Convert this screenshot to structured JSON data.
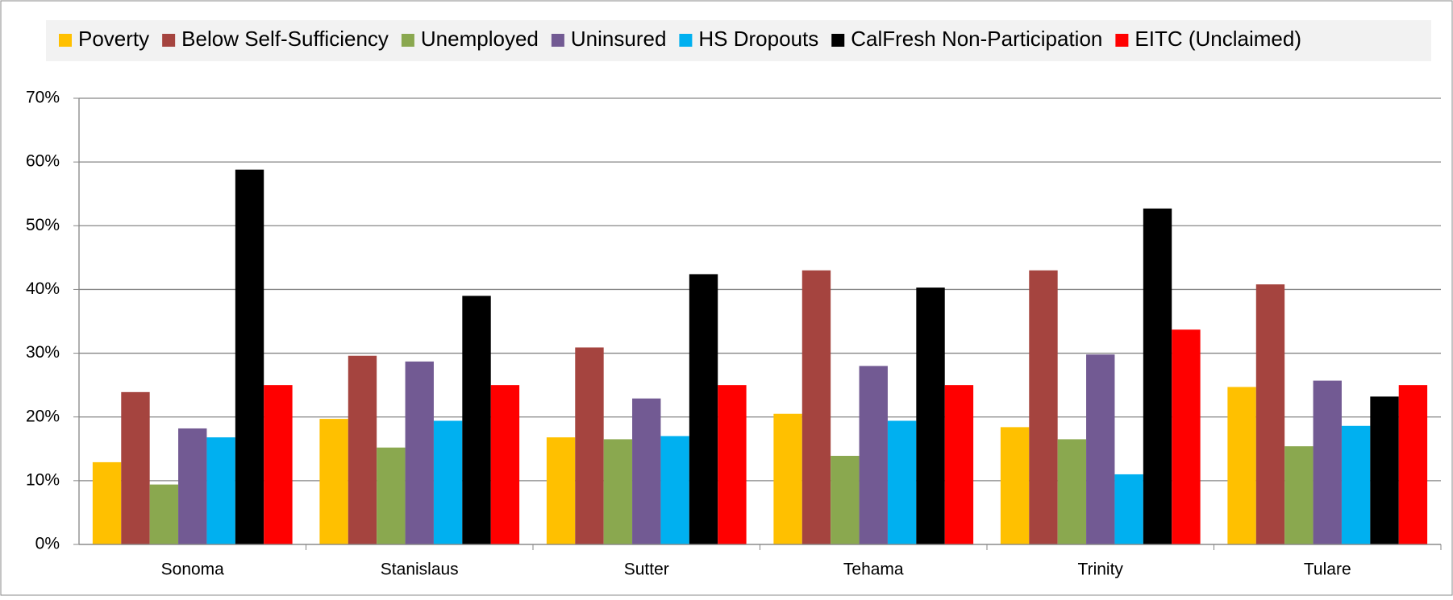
{
  "chart_data": {
    "type": "bar",
    "categories": [
      "Sonoma",
      "Stanislaus",
      "Sutter",
      "Tehama",
      "Trinity",
      "Tulare"
    ],
    "series": [
      {
        "name": "Poverty",
        "color": "#ffc000",
        "values": [
          12.9,
          19.7,
          16.8,
          20.5,
          18.4,
          24.7
        ]
      },
      {
        "name": "Below Self-Sufficiency",
        "color": "#a5443f",
        "values": [
          23.9,
          29.6,
          30.9,
          43.0,
          43.0,
          40.8
        ]
      },
      {
        "name": "Unemployed",
        "color": "#8aa84f",
        "values": [
          9.4,
          15.2,
          16.5,
          13.9,
          16.5,
          15.4
        ]
      },
      {
        "name": "Uninsured",
        "color": "#725a93",
        "values": [
          18.2,
          28.7,
          22.9,
          28.0,
          29.8,
          25.7
        ]
      },
      {
        "name": "HS Dropouts",
        "color": "#00b0f0",
        "values": [
          16.8,
          19.4,
          17.0,
          19.4,
          11.0,
          18.6
        ]
      },
      {
        "name": "CalFresh Non-Participation",
        "color": "#000000",
        "values": [
          58.8,
          39.0,
          42.4,
          40.3,
          52.7,
          23.2
        ]
      },
      {
        "name": "EITC (Unclaimed)",
        "color": "#ff0000",
        "values": [
          25.0,
          25.0,
          25.0,
          25.0,
          33.7,
          25.0
        ]
      }
    ],
    "ylim": [
      0,
      70
    ],
    "yticks": [
      {
        "value": 0,
        "label": "0%"
      },
      {
        "value": 10,
        "label": "10%"
      },
      {
        "value": 20,
        "label": "20%"
      },
      {
        "value": 30,
        "label": "30%"
      },
      {
        "value": 40,
        "label": "40%"
      },
      {
        "value": 50,
        "label": "50%"
      },
      {
        "value": 60,
        "label": "60%"
      },
      {
        "value": 70,
        "label": "70%"
      }
    ],
    "grid": true,
    "legend": "top"
  }
}
